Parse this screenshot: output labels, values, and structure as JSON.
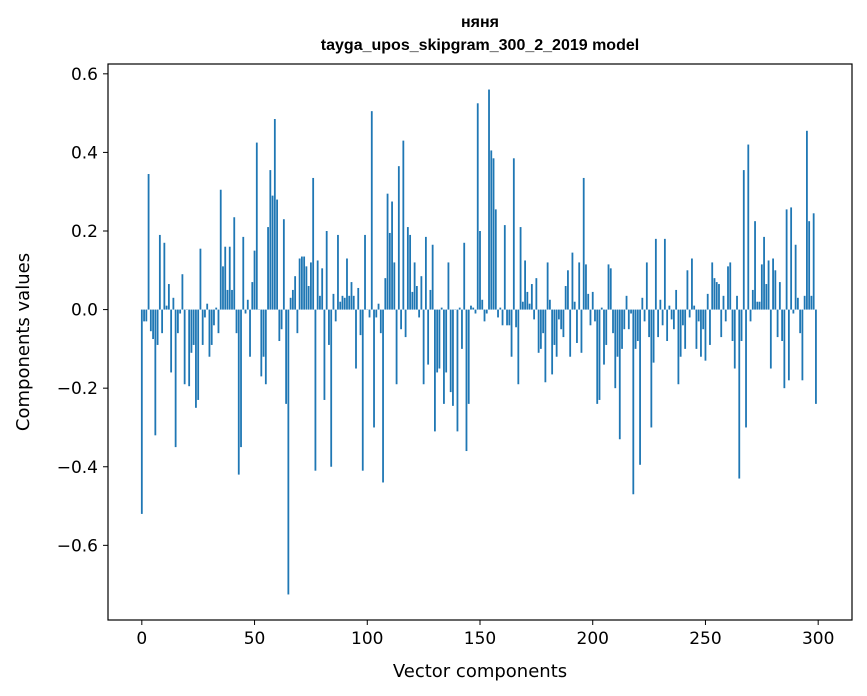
{
  "chart_data": {
    "type": "bar",
    "title": "няня",
    "subtitle": "tayga_upos_skipgram_300_2_2019 model",
    "xlabel": "Vector components",
    "ylabel": "Components values",
    "xlim": [
      -15,
      315
    ],
    "ylim": [
      -0.79,
      0.625
    ],
    "xticks": [
      0,
      50,
      100,
      150,
      200,
      250,
      300
    ],
    "xtick_labels": [
      "0",
      "50",
      "100",
      "150",
      "200",
      "250",
      "300"
    ],
    "yticks": [
      -0.6,
      -0.4,
      -0.2,
      0.0,
      0.2,
      0.4,
      0.6
    ],
    "ytick_labels": [
      "−0.6",
      "−0.4",
      "−0.2",
      "0.0",
      "0.2",
      "0.4",
      "0.6"
    ],
    "color": "#1f77b4",
    "values": [
      -0.52,
      -0.03,
      -0.03,
      0.345,
      -0.055,
      -0.075,
      -0.32,
      -0.09,
      0.19,
      -0.06,
      0.17,
      0.01,
      0.065,
      -0.16,
      0.03,
      -0.35,
      -0.06,
      -0.01,
      0.09,
      -0.19,
      0.0,
      -0.195,
      -0.11,
      -0.09,
      -0.25,
      -0.23,
      0.155,
      -0.09,
      -0.02,
      0.015,
      -0.12,
      -0.09,
      -0.04,
      0.005,
      -0.06,
      0.305,
      0.11,
      0.16,
      0.05,
      0.16,
      0.05,
      0.235,
      -0.06,
      -0.42,
      -0.35,
      0.185,
      -0.01,
      0.025,
      -0.12,
      0.07,
      0.15,
      0.425,
      0.0,
      -0.17,
      -0.12,
      -0.19,
      0.21,
      0.355,
      0.29,
      0.485,
      0.28,
      -0.08,
      -0.05,
      0.23,
      -0.24,
      -0.725,
      0.03,
      0.05,
      0.085,
      -0.06,
      0.13,
      0.135,
      0.135,
      0.11,
      0.06,
      0.12,
      0.335,
      -0.41,
      0.125,
      0.035,
      0.105,
      -0.23,
      0.2,
      -0.09,
      -0.4,
      0.04,
      -0.03,
      0.19,
      0.02,
      0.035,
      0.03,
      0.13,
      0.035,
      0.07,
      0.035,
      -0.15,
      0.055,
      -0.065,
      -0.41,
      0.19,
      0.0,
      -0.02,
      0.505,
      -0.3,
      -0.02,
      0.015,
      -0.06,
      -0.44,
      0.08,
      0.295,
      0.195,
      0.275,
      0.12,
      -0.19,
      0.365,
      -0.05,
      0.43,
      -0.07,
      0.21,
      0.19,
      0.045,
      0.12,
      0.06,
      -0.02,
      0.085,
      -0.19,
      0.185,
      -0.14,
      0.05,
      0.165,
      -0.31,
      -0.16,
      -0.15,
      0.005,
      -0.24,
      -0.16,
      0.12,
      -0.21,
      -0.245,
      0.0,
      -0.31,
      0.005,
      -0.1,
      0.17,
      -0.36,
      -0.24,
      0.01,
      0.005,
      -0.01,
      0.525,
      0.2,
      0.025,
      -0.03,
      -0.01,
      0.56,
      0.405,
      0.385,
      0.255,
      -0.02,
      0.005,
      -0.04,
      0.215,
      -0.04,
      -0.04,
      -0.12,
      0.385,
      -0.045,
      -0.19,
      0.21,
      0.02,
      0.125,
      0.045,
      0.015,
      0.065,
      -0.025,
      0.08,
      -0.11,
      -0.1,
      -0.06,
      -0.185,
      0.12,
      0.025,
      -0.165,
      -0.09,
      -0.12,
      -0.025,
      -0.05,
      -0.07,
      0.06,
      0.1,
      -0.12,
      0.145,
      0.02,
      -0.085,
      0.12,
      -0.11,
      0.335,
      0.115,
      0.04,
      -0.04,
      0.045,
      -0.03,
      -0.24,
      -0.23,
      0.005,
      -0.14,
      -0.09,
      0.115,
      0.105,
      -0.06,
      -0.2,
      -0.12,
      -0.33,
      -0.1,
      -0.05,
      0.035,
      -0.05,
      -0.01,
      -0.47,
      -0.1,
      -0.08,
      -0.395,
      0.03,
      -0.03,
      0.12,
      -0.07,
      -0.3,
      -0.135,
      0.18,
      -0.07,
      0.025,
      -0.04,
      0.18,
      -0.08,
      0.01,
      -0.025,
      -0.05,
      0.05,
      -0.19,
      -0.12,
      -0.04,
      -0.1,
      0.1,
      -0.02,
      0.13,
      0.01,
      -0.1,
      -0.03,
      -0.12,
      -0.05,
      -0.13,
      0.04,
      -0.09,
      0.12,
      0.08,
      0.07,
      0.065,
      -0.07,
      0.035,
      -0.03,
      0.11,
      0.12,
      -0.08,
      -0.15,
      0.035,
      -0.43,
      -0.08,
      0.355,
      -0.3,
      0.42,
      -0.03,
      0.05,
      0.225,
      0.02,
      0.02,
      0.115,
      0.185,
      0.065,
      0.125,
      -0.15,
      0.13,
      0.1,
      -0.07,
      0.07,
      -0.08,
      -0.2,
      0.255,
      -0.18,
      0.26,
      -0.01,
      0.165,
      0.03,
      -0.06,
      -0.18,
      0.035,
      0.455,
      0.225,
      0.035,
      0.245,
      -0.24
    ]
  }
}
